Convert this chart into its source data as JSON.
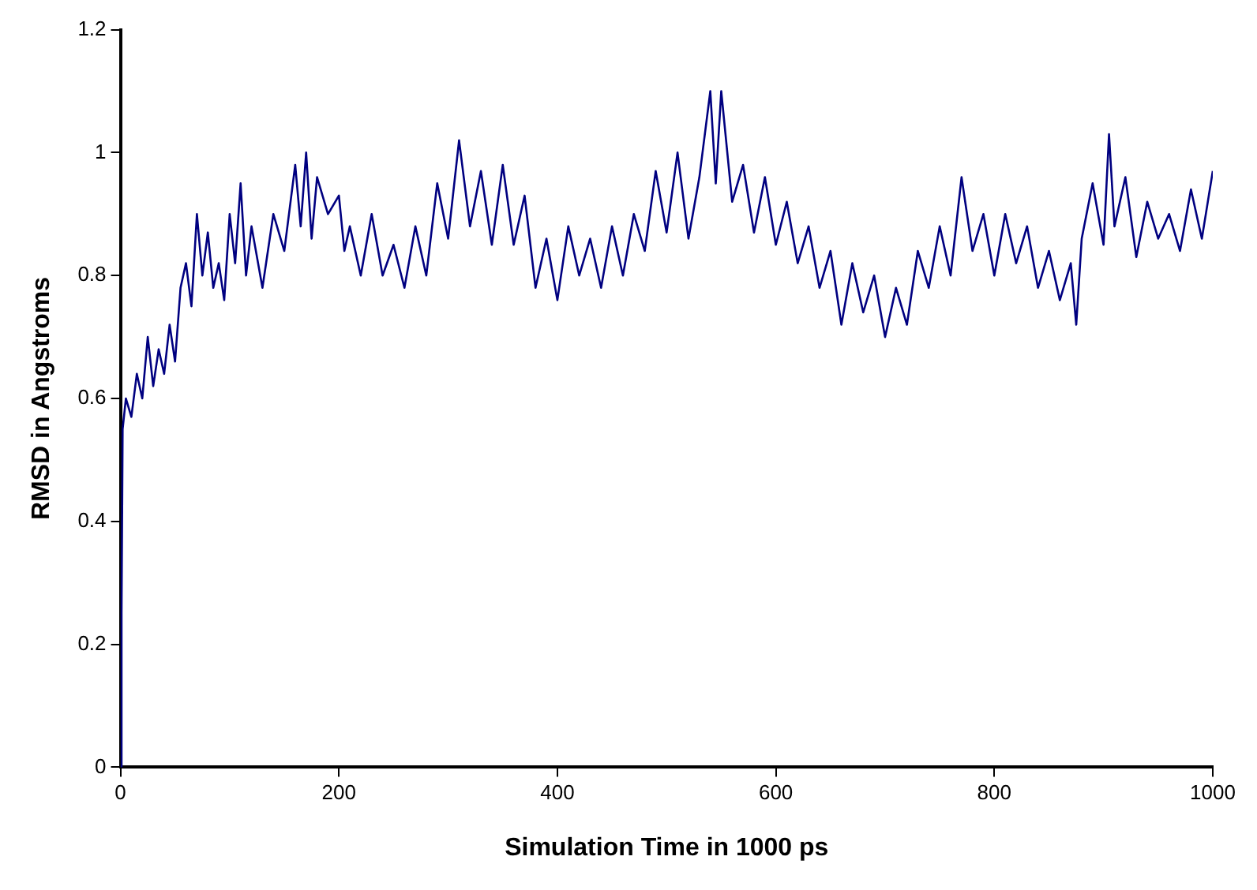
{
  "chart_data": {
    "type": "line",
    "xlabel": "Simulation Time in 1000 ps",
    "ylabel": "RMSD in Angstroms",
    "xlim": [
      0,
      1000
    ],
    "xticks": [
      0,
      200,
      400,
      600,
      800,
      1000
    ],
    "ylim": [
      0,
      1.2
    ],
    "yticks": [
      0,
      0.2,
      0.4,
      0.6,
      0.8,
      1,
      1.2
    ],
    "grid": false,
    "legend": false,
    "marker": "none",
    "line_style": "solid",
    "series": [
      {
        "color": "#000080",
        "x": [
          0,
          1,
          2,
          5,
          10,
          15,
          20,
          25,
          30,
          35,
          40,
          45,
          50,
          55,
          60,
          65,
          70,
          75,
          80,
          85,
          90,
          95,
          100,
          105,
          110,
          115,
          120,
          130,
          140,
          150,
          160,
          165,
          170,
          175,
          180,
          190,
          200,
          205,
          210,
          220,
          230,
          240,
          250,
          260,
          270,
          280,
          290,
          300,
          310,
          320,
          330,
          340,
          350,
          360,
          370,
          380,
          390,
          400,
          410,
          420,
          430,
          440,
          450,
          460,
          470,
          480,
          490,
          500,
          510,
          520,
          530,
          540,
          545,
          550,
          560,
          570,
          580,
          590,
          600,
          610,
          620,
          630,
          640,
          650,
          660,
          670,
          680,
          690,
          700,
          710,
          720,
          730,
          740,
          750,
          760,
          770,
          780,
          790,
          800,
          810,
          820,
          830,
          840,
          850,
          860,
          870,
          875,
          880,
          890,
          900,
          905,
          910,
          920,
          930,
          940,
          950,
          960,
          970,
          980,
          990,
          1000
        ],
        "values": [
          0,
          0.25,
          0.55,
          0.6,
          0.57,
          0.64,
          0.6,
          0.7,
          0.62,
          0.68,
          0.64,
          0.72,
          0.66,
          0.78,
          0.82,
          0.75,
          0.9,
          0.8,
          0.87,
          0.78,
          0.82,
          0.76,
          0.9,
          0.82,
          0.95,
          0.8,
          0.88,
          0.78,
          0.9,
          0.84,
          0.98,
          0.88,
          1.0,
          0.86,
          0.96,
          0.9,
          0.93,
          0.84,
          0.88,
          0.8,
          0.9,
          0.8,
          0.85,
          0.78,
          0.88,
          0.8,
          0.95,
          0.86,
          1.02,
          0.88,
          0.97,
          0.85,
          0.98,
          0.85,
          0.93,
          0.78,
          0.86,
          0.76,
          0.88,
          0.8,
          0.86,
          0.78,
          0.88,
          0.8,
          0.9,
          0.84,
          0.97,
          0.87,
          1.0,
          0.86,
          0.96,
          1.1,
          0.95,
          1.1,
          0.92,
          0.98,
          0.87,
          0.96,
          0.85,
          0.92,
          0.82,
          0.88,
          0.78,
          0.84,
          0.72,
          0.82,
          0.74,
          0.8,
          0.7,
          0.78,
          0.72,
          0.84,
          0.78,
          0.88,
          0.8,
          0.96,
          0.84,
          0.9,
          0.8,
          0.9,
          0.82,
          0.88,
          0.78,
          0.84,
          0.76,
          0.82,
          0.72,
          0.86,
          0.95,
          0.85,
          1.03,
          0.88,
          0.96,
          0.83,
          0.92,
          0.86,
          0.9,
          0.84,
          0.94,
          0.86,
          0.97
        ]
      }
    ]
  }
}
